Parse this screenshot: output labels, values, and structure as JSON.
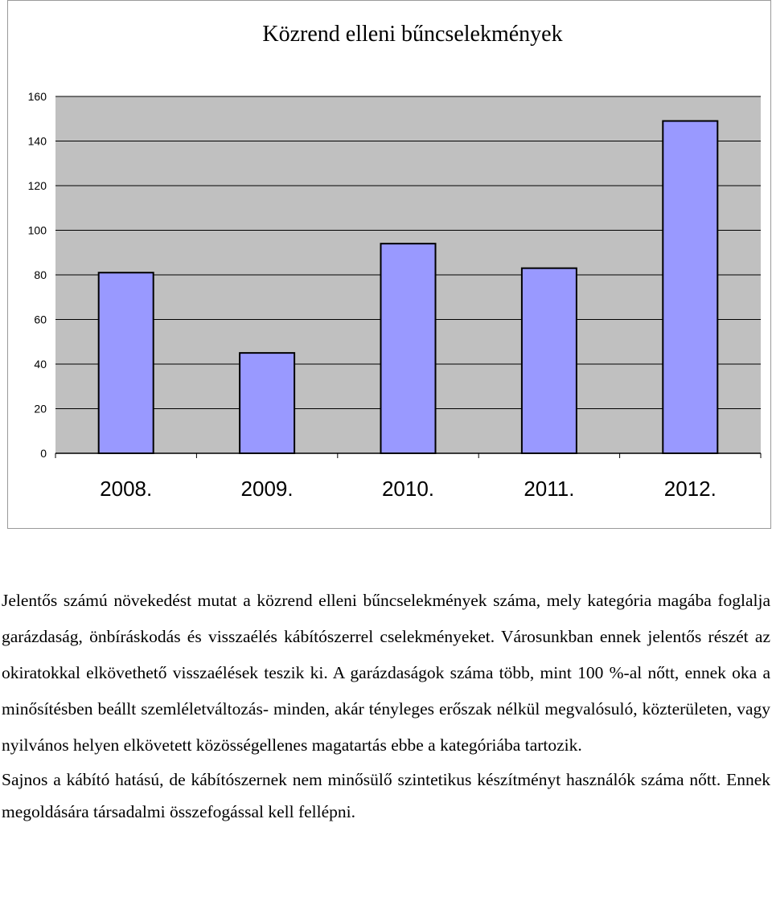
{
  "chart_data": {
    "type": "bar",
    "title": "Közrend elleni bűncselekmények",
    "categories": [
      "2008.",
      "2009.",
      "2010.",
      "2011.",
      "2012."
    ],
    "values": [
      81,
      45,
      94,
      83,
      149
    ],
    "ylim": [
      0,
      160
    ],
    "yticks": [
      0,
      20,
      40,
      60,
      80,
      100,
      120,
      140,
      160
    ],
    "grid": true,
    "colors": {
      "bar": "#9999ff",
      "plot_background": "#c0c0c0",
      "bar_border": "#000000"
    }
  },
  "text": {
    "paragraph1": "Jelentős számú növekedést mutat a közrend elleni bűncselekmények száma, mely kategória magába foglalja garázdaság, önbíráskodás és visszaélés kábítószerrel cselekményeket. Városunkban ennek jelentős részét az okiratokkal elkövethető visszaélések teszik ki. A garázdaságok száma több, mint 100 %-al nőtt, ennek oka a minősítésben beállt szemléletváltozás- minden, akár tényleges erőszak nélkül megvalósuló, közterületen, vagy nyilvános helyen elkövetett közösségellenes magatartás ebbe a kategóriába tartozik.",
    "paragraph2": "Sajnos a kábító hatású, de kábítószernek nem minősülő szintetikus készítményt használók száma nőtt. Ennek megoldására társadalmi összefogással kell fellépni."
  }
}
